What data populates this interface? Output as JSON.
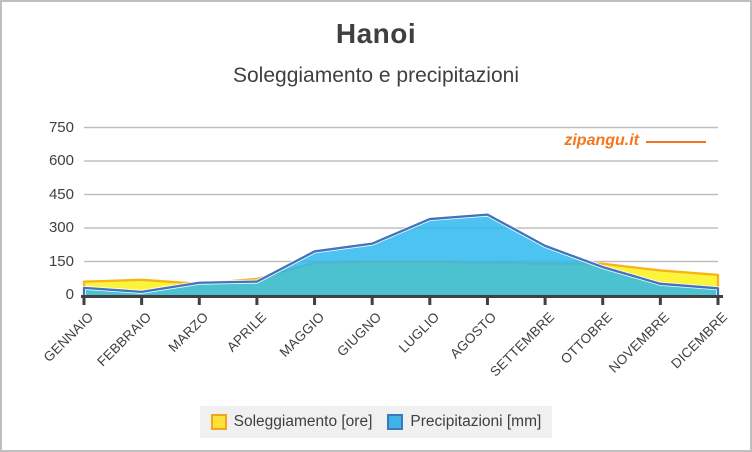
{
  "header": {
    "title": "Hanoi",
    "subtitle": "Soleggiamento e precipitazioni"
  },
  "watermark": {
    "text": "zipangu.it",
    "color": "#F4771F"
  },
  "chart_data": {
    "type": "area",
    "title": "Hanoi",
    "subtitle": "Soleggiamento e precipitazioni",
    "categories": [
      "GENNAIO",
      "FEBBRAIO",
      "MARZO",
      "APRILE",
      "MAGGIO",
      "GIUGNO",
      "LUGLIO",
      "AGOSTO",
      "SETTEMBRE",
      "OTTOBRE",
      "NOVEMBRE",
      "DICEMBRE"
    ],
    "series": [
      {
        "name": "Soleggiamento [ore]",
        "fill": "#FBF43B",
        "border": "#F7B318",
        "values": [
          60,
          68,
          50,
          72,
          145,
          150,
          150,
          145,
          140,
          140,
          110,
          90
        ]
      },
      {
        "name": "Precipitazioni [mm]",
        "fill": "#2AB7ED",
        "fill_opacity": 0.84,
        "border": "#4173BE",
        "border_halo": "#FFFFFF",
        "values": [
          32,
          14,
          55,
          60,
          195,
          230,
          340,
          360,
          220,
          125,
          50,
          30
        ]
      }
    ],
    "ylim": [
      0,
      750
    ],
    "yticks": [
      0,
      150,
      300,
      450,
      600,
      750
    ],
    "grid": true,
    "gridline_color": "#BFBFBF",
    "axis_color": "#404040",
    "legend_position": "bottom"
  },
  "legend": {
    "items": [
      {
        "label": "Soleggiamento [ore]",
        "swatch_fill": "#FFE03A",
        "swatch_border": "#F2A51C"
      },
      {
        "label": "Precipitazioni [mm]",
        "swatch_fill": "#3FB3E6",
        "swatch_border": "#3A79BE"
      }
    ]
  }
}
